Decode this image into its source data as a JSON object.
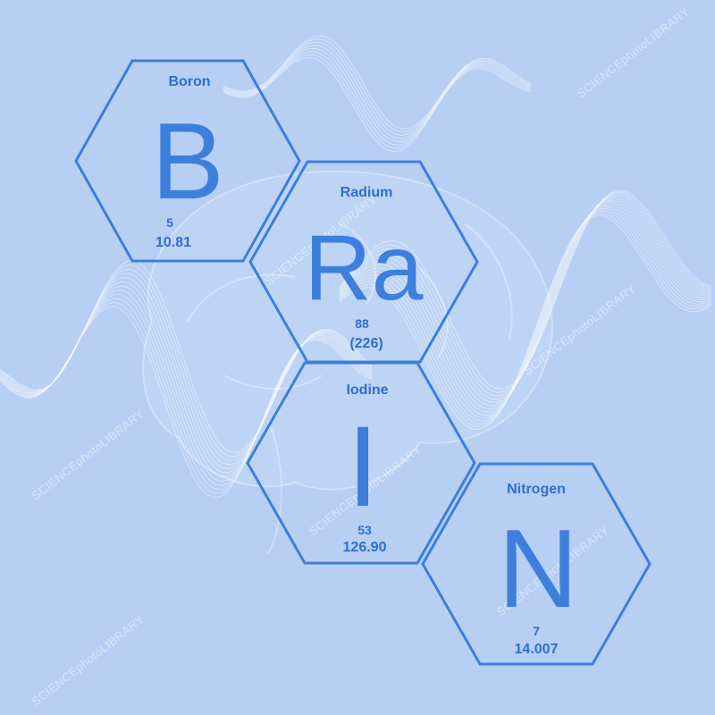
{
  "colors": {
    "background": "#b7cff3",
    "hex_stroke": "#3d7fdc",
    "symbol": "#3d7fdc",
    "text": "#2f6fcf",
    "wave": "#ffffff"
  },
  "elements": [
    {
      "name": "Boron",
      "symbol": "B",
      "number": "5",
      "mass": "10.81"
    },
    {
      "name": "Radium",
      "symbol": "Ra",
      "number": "88",
      "mass": "(226)"
    },
    {
      "name": "Iodine",
      "symbol": "I",
      "number": "53",
      "mass": "126.90"
    },
    {
      "name": "Nitrogen",
      "symbol": "N",
      "number": "7",
      "mass": "14.007"
    }
  ],
  "watermark": "SCIENCEphotoLIBRARY",
  "background_illustration": "brain-with-wireframe-waves"
}
